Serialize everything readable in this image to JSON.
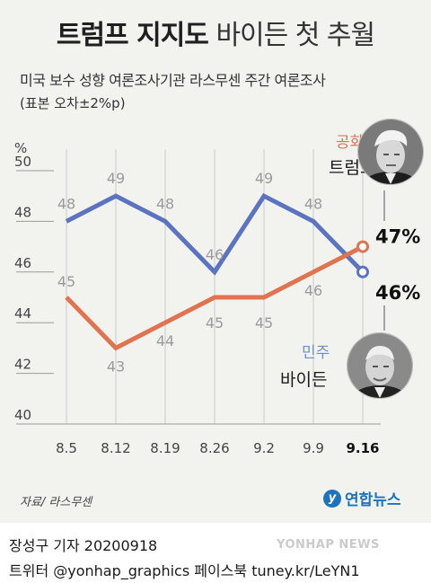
{
  "header": {
    "title_bold": "트럼프 지지도",
    "title_light": "바이든 첫 추월",
    "subtitle": "미국 보수 성향 여론조사기관 라스무센 주간 여론조사",
    "note": "(표본 오차±2%p)"
  },
  "chart_data": {
    "type": "line",
    "ylabel": "%",
    "ylim": [
      40,
      50
    ],
    "yticks": [
      40,
      42,
      44,
      46,
      48,
      50
    ],
    "categories": [
      "8.5",
      "8.12",
      "8.19",
      "8.26",
      "9.2",
      "9.9",
      "9.16"
    ],
    "series": [
      {
        "name": "트럼프",
        "party": "공화",
        "color": "#5b73c0",
        "values": [
          48,
          49,
          48,
          46,
          49,
          48,
          46
        ],
        "latest_label": "46%"
      },
      {
        "name": "바이든",
        "party": "민주",
        "color": "#e07350",
        "values": [
          45,
          43,
          44,
          45,
          45,
          46,
          47
        ],
        "latest_label": "47%"
      }
    ],
    "grid": true
  },
  "labels": {
    "trump_party": "공화",
    "trump_name": "트럼프",
    "biden_party": "민주",
    "biden_name": "바이든"
  },
  "colors": {
    "trump_line": "#5b73c0",
    "biden_line": "#e07350",
    "republican": "#d9765a",
    "democrat": "#6e8fcf",
    "axis_grey": "#bdbdbd"
  },
  "source": "자료/ 라스무센",
  "logo": {
    "mark": "y",
    "text": "연합뉴스"
  },
  "footer": {
    "byline": "장성구 기자  20200918",
    "social": "트위터 @yonhap_graphics  페이스북 tuney.kr/LeYN1"
  },
  "watermark": "YONHAP NEWS"
}
